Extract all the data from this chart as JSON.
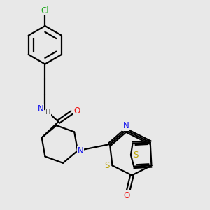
{
  "bg": "#e8e8e8",
  "bond_color": "#000000",
  "bond_lw": 1.6,
  "colors": {
    "N": "#1010ee",
    "O": "#ee1010",
    "S": "#b8a000",
    "Cl": "#22aa22",
    "H": "#555555"
  },
  "font_size": 8.5
}
